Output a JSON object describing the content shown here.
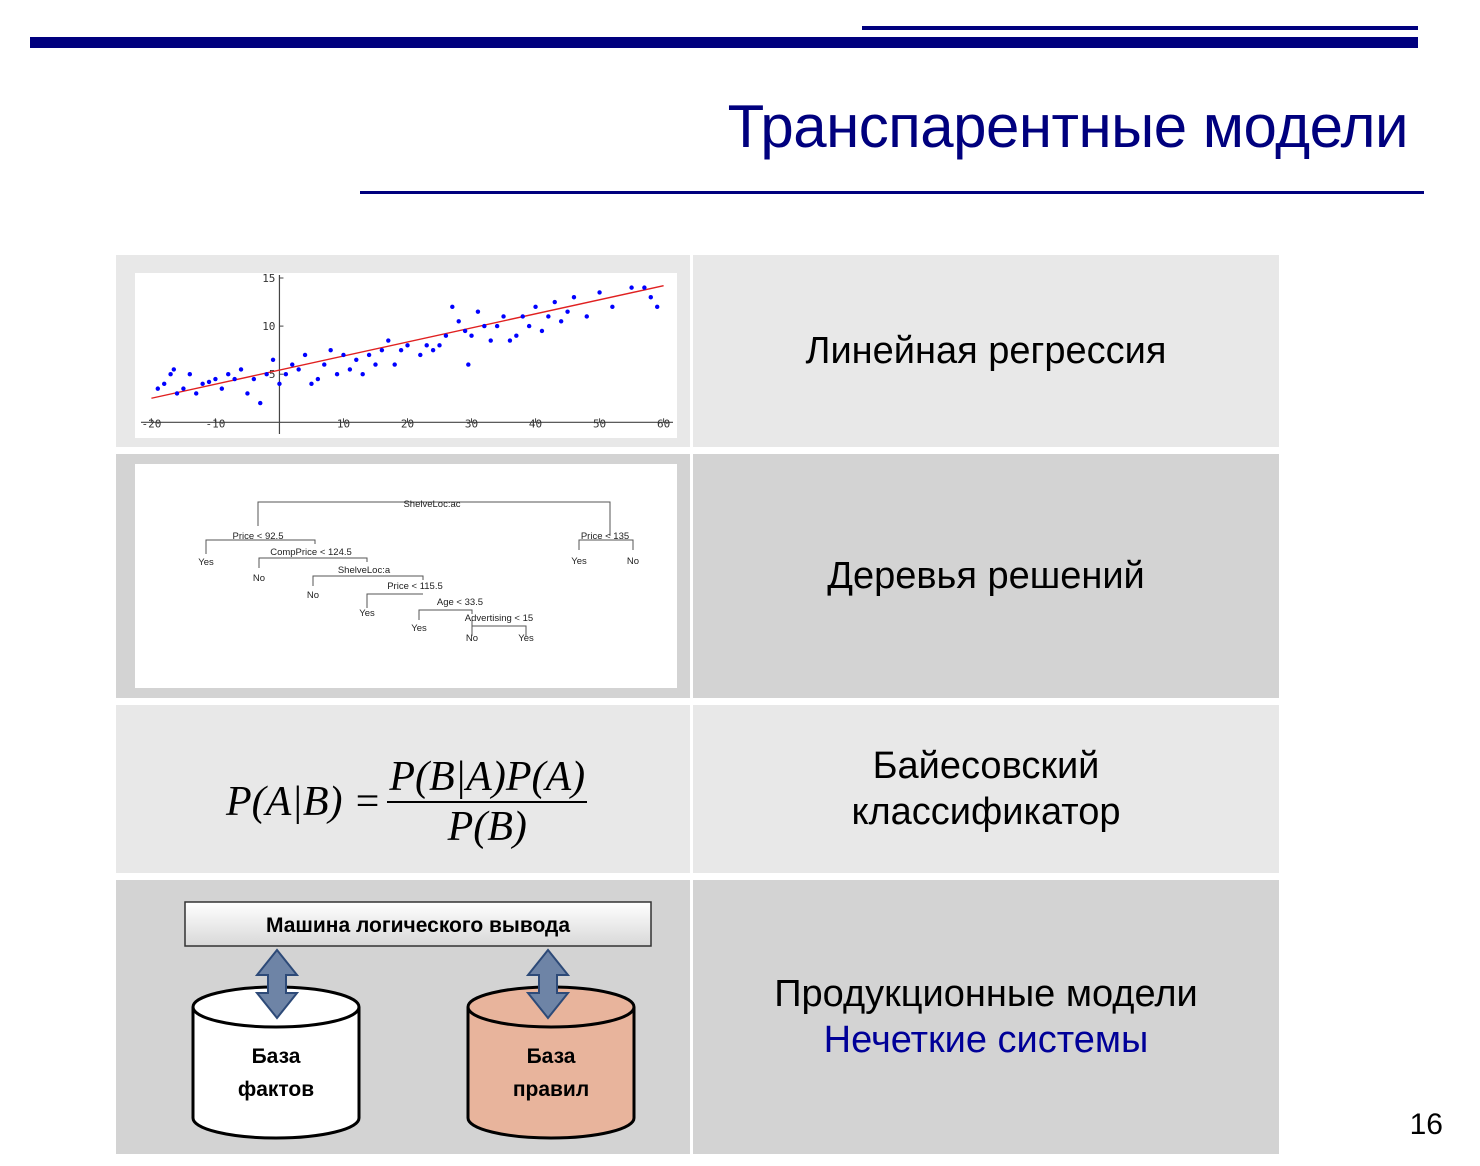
{
  "slide": {
    "title": "Транспарентные модели",
    "page_number": "16"
  },
  "colors": {
    "accent": "#00007e",
    "row_light": "#e8e8e8",
    "row_dark": "#d3d3d3",
    "scatter_point": "#0000ff",
    "regression_line": "#e02020",
    "rule_base_fill": "#e8b49c",
    "arrow_fill": "#6e84a6"
  },
  "rows": [
    {
      "label": "Линейная регрессия"
    },
    {
      "label": "Деревья решений"
    },
    {
      "label_line1": "Байесовский",
      "label_line2": "классификатор"
    },
    {
      "label_line1": "Продукционные модели",
      "label_line2": "Нечеткие системы"
    }
  ],
  "regression_plot": {
    "x_ticks": [
      "-20",
      "-10",
      "10",
      "20",
      "30",
      "40",
      "50",
      "60"
    ],
    "y_ticks": [
      "5",
      "10",
      "15"
    ],
    "x_range": [
      -21,
      61
    ],
    "y_range": [
      -0.8,
      15
    ],
    "line": [
      [
        -20,
        2.5
      ],
      [
        60,
        14.2
      ]
    ],
    "points": [
      [
        -19,
        3.5
      ],
      [
        -18,
        4
      ],
      [
        -17,
        5
      ],
      [
        -16,
        3
      ],
      [
        -16.5,
        5.5
      ],
      [
        -15,
        3.5
      ],
      [
        -14,
        5
      ],
      [
        -13,
        3
      ],
      [
        -12,
        4
      ],
      [
        -11,
        4.2
      ],
      [
        -10,
        4.5
      ],
      [
        -9,
        3.5
      ],
      [
        -8,
        5
      ],
      [
        -7,
        4.5
      ],
      [
        -6,
        5.5
      ],
      [
        -5,
        3
      ],
      [
        -4,
        4.5
      ],
      [
        -3,
        2
      ],
      [
        -2,
        5
      ],
      [
        -1,
        6.5
      ],
      [
        0,
        4
      ],
      [
        1,
        5
      ],
      [
        2,
        6
      ],
      [
        3,
        5.5
      ],
      [
        4,
        7
      ],
      [
        5,
        4
      ],
      [
        6,
        4.5
      ],
      [
        7,
        6
      ],
      [
        8,
        7.5
      ],
      [
        9,
        5
      ],
      [
        10,
        7
      ],
      [
        11,
        5.5
      ],
      [
        12,
        6.5
      ],
      [
        13,
        5
      ],
      [
        14,
        7
      ],
      [
        15,
        6
      ],
      [
        16,
        7.5
      ],
      [
        17,
        8.5
      ],
      [
        18,
        6
      ],
      [
        19,
        7.5
      ],
      [
        20,
        8
      ],
      [
        22,
        7
      ],
      [
        23,
        8
      ],
      [
        24,
        7.5
      ],
      [
        25,
        8
      ],
      [
        26,
        9
      ],
      [
        27,
        12
      ],
      [
        28,
        10.5
      ],
      [
        29,
        9.5
      ],
      [
        30,
        9
      ],
      [
        31,
        11.5
      ],
      [
        32,
        10
      ],
      [
        33,
        8.5
      ],
      [
        34,
        10
      ],
      [
        35,
        11
      ],
      [
        36,
        8.5
      ],
      [
        37,
        9
      ],
      [
        38,
        11
      ],
      [
        39,
        10
      ],
      [
        40,
        12
      ],
      [
        41,
        9.5
      ],
      [
        42,
        11
      ],
      [
        43,
        12.5
      ],
      [
        44,
        10.5
      ],
      [
        45,
        11.5
      ],
      [
        46,
        13
      ],
      [
        48,
        11
      ],
      [
        50,
        13.5
      ],
      [
        52,
        12
      ],
      [
        55,
        14
      ],
      [
        57,
        14
      ],
      [
        58,
        13
      ],
      [
        59,
        12
      ],
      [
        29.5,
        6
      ]
    ]
  },
  "decision_tree": {
    "root": "ShelveLoc:ac",
    "price_92": "Price < 92.5",
    "price_135": "Price < 135",
    "comp_price": "CompPrice < 124.5",
    "shelve_a": "ShelveLoc:a",
    "price_115": "Price < 115.5",
    "age": "Age < 33.5",
    "advertising": "Advertising < 15",
    "yes": "Yes",
    "no": "No"
  },
  "bayes_formula": {
    "lhs": "P(A|B) =",
    "numerator": "P(B|A)P(A)",
    "denominator": "P(B)"
  },
  "production_diagram": {
    "engine_label": "Машина логического вывода",
    "facts_line1": "База",
    "facts_line2": "фактов",
    "rules_line1": "База",
    "rules_line2": "правил"
  }
}
